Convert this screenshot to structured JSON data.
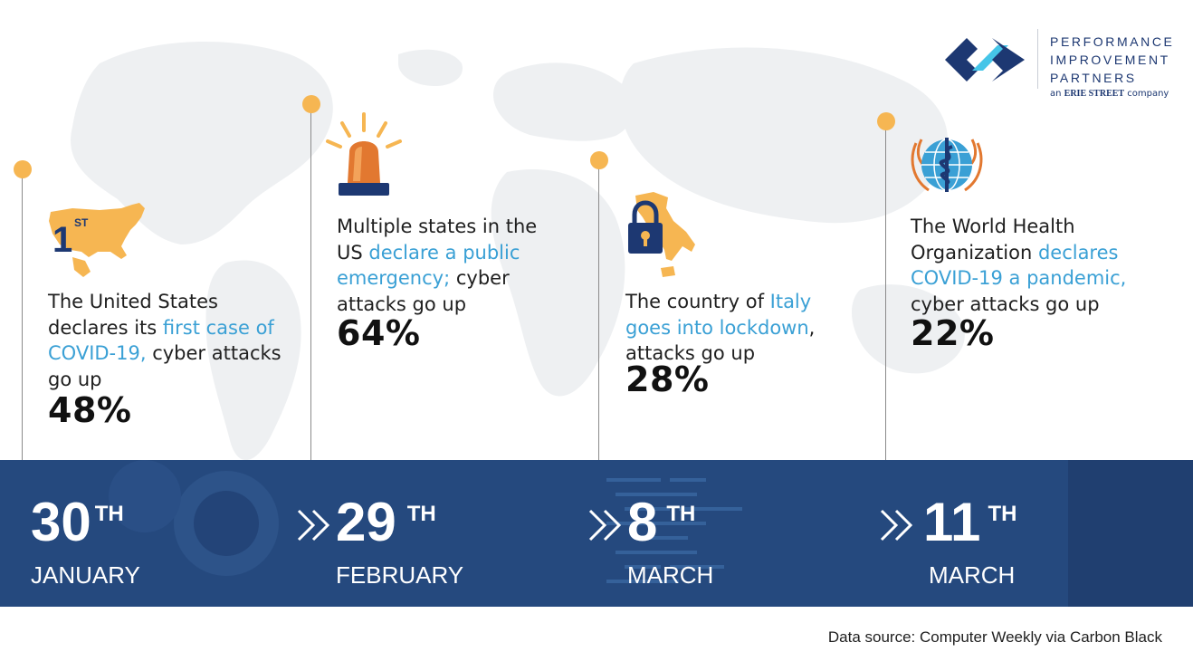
{
  "logo": {
    "lines": [
      "PERFORMANCE",
      "IMPROVEMENT",
      "PARTNERS"
    ],
    "sub_prefix": "an",
    "sub_brand": "ERIE STREET",
    "sub_suffix": "company"
  },
  "events": [
    {
      "icon": "us-map-icon",
      "icon_label": "1",
      "icon_label_sup": "ST",
      "text_pre": "The United States declares its ",
      "text_highlight": "first case of COVID-19,",
      "text_post": " cyber attacks go up",
      "stat": "48%"
    },
    {
      "icon": "siren-icon",
      "text_pre": "Multiple states in the US ",
      "text_highlight": "declare a public emergency;",
      "text_post": " cyber attacks go up",
      "stat": "64%"
    },
    {
      "icon": "italy-lock-icon",
      "text_pre": "The country of ",
      "text_highlight": "Italy goes into lockdown",
      "text_post": ", attacks go up",
      "stat": "28%"
    },
    {
      "icon": "who-emblem-icon",
      "text_pre": "The World Health Organization ",
      "text_highlight": "declares COVID-19 a pandemic,",
      "text_post": " cyber attacks go up",
      "stat": "22%"
    }
  ],
  "dates": [
    {
      "day": "30",
      "suffix": "TH",
      "month": "JANUARY"
    },
    {
      "day": "29",
      "suffix": "TH",
      "month": "FEBRUARY"
    },
    {
      "day": "8",
      "suffix": "TH",
      "month": "MARCH"
    },
    {
      "day": "11",
      "suffix": "TH",
      "month": "MARCH"
    }
  ],
  "source": "Data source: Computer Weekly via Carbon Black",
  "colors": {
    "accent_blue": "#3aa0d5",
    "band": "#25497e",
    "timeline_dot": "#f6b652",
    "brand_navy": "#1d3872"
  }
}
